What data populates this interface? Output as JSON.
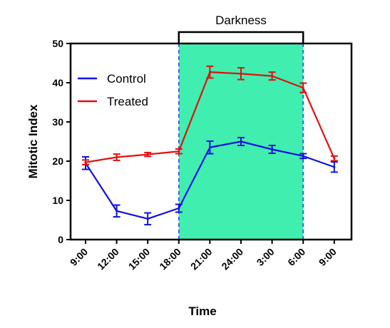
{
  "chart_data": {
    "type": "line",
    "title": "",
    "xlabel": "Time",
    "ylabel": "Mitotic Index",
    "categories": [
      "9:00",
      "12:00",
      "15:00",
      "18:00",
      "21:00",
      "24:00",
      "3:00",
      "6:00",
      "9:00"
    ],
    "ylim": [
      0,
      50
    ],
    "yticks": [
      0,
      10,
      20,
      30,
      40,
      50
    ],
    "grid": false,
    "legend_position": "top-left",
    "series": [
      {
        "name": "Control",
        "color": "#1010e0",
        "values": [
          19.5,
          7.3,
          5.3,
          8.0,
          23.5,
          25.0,
          23.0,
          21.3,
          18.5
        ],
        "errors": [
          1.6,
          1.5,
          1.5,
          1.0,
          1.6,
          1.0,
          1.0,
          0.6,
          1.3
        ]
      },
      {
        "name": "Treated",
        "color": "#e01010",
        "values": [
          19.7,
          21.0,
          21.7,
          22.5,
          42.7,
          42.3,
          41.7,
          38.7,
          20.7
        ],
        "errors": [
          0.6,
          0.8,
          0.5,
          0.6,
          1.5,
          1.5,
          1.0,
          1.2,
          0.6
        ]
      }
    ],
    "shaded_region": {
      "label": "Darkness",
      "from_category_index": 3,
      "to_category_index": 7,
      "fill_color": "#40eeb0",
      "edge_color": "#2040e0"
    }
  }
}
